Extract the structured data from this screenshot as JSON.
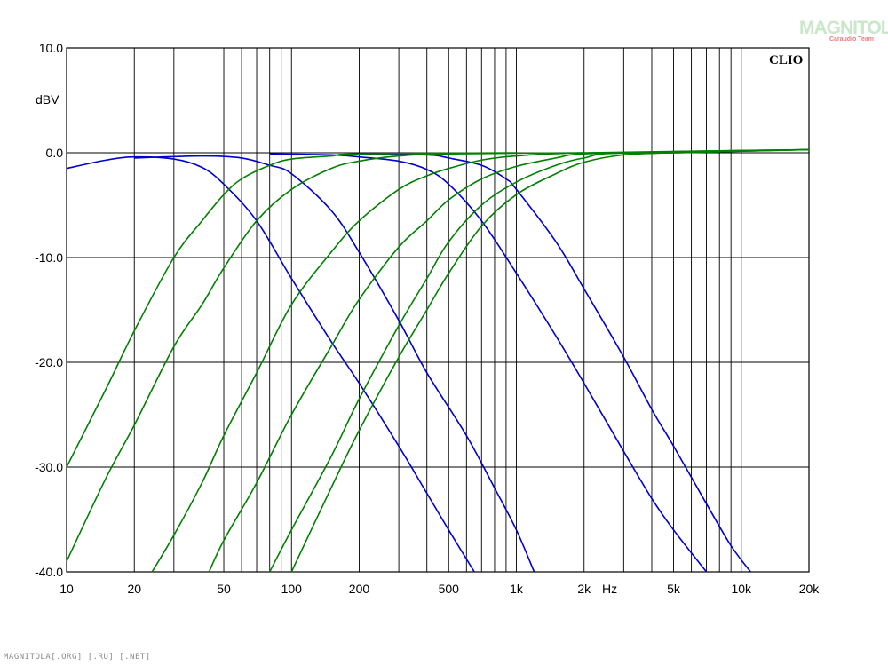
{
  "watermark": {
    "brand": "MAGNITOLA",
    "sub": "Caraudio Team"
  },
  "footer": "MAGNITOLA[.ORG] [.RU] [.NET]",
  "chart_data": {
    "type": "line",
    "logo": "CLIO",
    "ylabel": "dBV",
    "xlabel": "Hz",
    "x_scale": "log",
    "xlim": [
      10,
      20000
    ],
    "ylim": [
      -40,
      10
    ],
    "grid": true,
    "y_ticks": [
      {
        "value": 10,
        "label": "10.0"
      },
      {
        "value": 0,
        "label": "0.0"
      },
      {
        "value": -10,
        "label": "-10.0"
      },
      {
        "value": -20,
        "label": "-20.0"
      },
      {
        "value": -30,
        "label": "-30.0"
      },
      {
        "value": -40,
        "label": "-40.0"
      }
    ],
    "x_ticks": [
      {
        "value": 10,
        "label": "10"
      },
      {
        "value": 20,
        "label": "20"
      },
      {
        "value": 50,
        "label": "50"
      },
      {
        "value": 100,
        "label": "100"
      },
      {
        "value": 200,
        "label": "200"
      },
      {
        "value": 500,
        "label": "500"
      },
      {
        "value": 1000,
        "label": "1k"
      },
      {
        "value": 2000,
        "label": "2k"
      },
      {
        "value": 5000,
        "label": "5k"
      },
      {
        "value": 10000,
        "label": "10k"
      },
      {
        "value": 20000,
        "label": "20k"
      }
    ],
    "series_colors": {
      "lowpass": "#0000cc",
      "highpass": "#008000"
    },
    "series": [
      {
        "kind": "lowpass",
        "color": "#0000cc",
        "points": [
          [
            10,
            -1.5
          ],
          [
            15,
            -0.7
          ],
          [
            20,
            -0.4
          ],
          [
            30,
            -0.6
          ],
          [
            40,
            -1.4
          ],
          [
            50,
            -3.0
          ],
          [
            70,
            -6.5
          ],
          [
            100,
            -12
          ],
          [
            150,
            -18
          ],
          [
            200,
            -22
          ],
          [
            300,
            -28
          ],
          [
            400,
            -32.5
          ],
          [
            500,
            -36
          ],
          [
            650,
            -40
          ]
        ]
      },
      {
        "kind": "lowpass",
        "color": "#0000cc",
        "points": [
          [
            20,
            -0.5
          ],
          [
            40,
            -0.3
          ],
          [
            60,
            -0.5
          ],
          [
            80,
            -1.2
          ],
          [
            100,
            -2.0
          ],
          [
            150,
            -5.5
          ],
          [
            200,
            -9.5
          ],
          [
            300,
            -16
          ],
          [
            400,
            -21
          ],
          [
            600,
            -27
          ],
          [
            800,
            -32
          ],
          [
            1000,
            -36
          ],
          [
            1200,
            -40
          ]
        ]
      },
      {
        "kind": "lowpass",
        "color": "#0000cc",
        "points": [
          [
            80,
            -0.1
          ],
          [
            150,
            -0.2
          ],
          [
            200,
            -0.4
          ],
          [
            300,
            -0.8
          ],
          [
            400,
            -1.6
          ],
          [
            500,
            -3.0
          ],
          [
            700,
            -6.5
          ],
          [
            1000,
            -11.5
          ],
          [
            1500,
            -17.5
          ],
          [
            2000,
            -22
          ],
          [
            3000,
            -28.5
          ],
          [
            4000,
            -33
          ],
          [
            5000,
            -36
          ],
          [
            7000,
            -40
          ]
        ]
      },
      {
        "kind": "lowpass",
        "color": "#0000cc",
        "points": [
          [
            200,
            -0.1
          ],
          [
            400,
            -0.2
          ],
          [
            500,
            -0.5
          ],
          [
            700,
            -1.2
          ],
          [
            900,
            -2.5
          ],
          [
            1000,
            -3.5
          ],
          [
            1500,
            -8.5
          ],
          [
            2000,
            -13
          ],
          [
            3000,
            -19.5
          ],
          [
            4000,
            -24.5
          ],
          [
            5000,
            -28
          ],
          [
            7000,
            -33.5
          ],
          [
            9000,
            -37.5
          ],
          [
            11000,
            -40
          ]
        ]
      },
      {
        "kind": "highpass",
        "color": "#008000",
        "points": [
          [
            10,
            -30
          ],
          [
            15,
            -22.5
          ],
          [
            20,
            -17
          ],
          [
            30,
            -10
          ],
          [
            40,
            -6.5
          ],
          [
            50,
            -4.0
          ],
          [
            60,
            -2.5
          ],
          [
            80,
            -1.2
          ],
          [
            100,
            -0.6
          ],
          [
            150,
            -0.3
          ],
          [
            200,
            -0.1
          ],
          [
            1000,
            0
          ]
        ]
      },
      {
        "kind": "highpass",
        "color": "#008000",
        "points": [
          [
            10,
            -39
          ],
          [
            15,
            -31
          ],
          [
            20,
            -26
          ],
          [
            30,
            -18.5
          ],
          [
            40,
            -14.5
          ],
          [
            50,
            -11
          ],
          [
            70,
            -6.5
          ],
          [
            100,
            -3.5
          ],
          [
            150,
            -1.5
          ],
          [
            200,
            -0.8
          ],
          [
            300,
            -0.3
          ],
          [
            500,
            -0.1
          ],
          [
            2000,
            0
          ]
        ]
      },
      {
        "kind": "highpass",
        "color": "#008000",
        "points": [
          [
            24,
            -40
          ],
          [
            30,
            -36.5
          ],
          [
            40,
            -31.5
          ],
          [
            50,
            -27
          ],
          [
            70,
            -21
          ],
          [
            100,
            -14.5
          ],
          [
            150,
            -9.5
          ],
          [
            200,
            -6.5
          ],
          [
            300,
            -3.5
          ],
          [
            400,
            -2.2
          ],
          [
            500,
            -1.5
          ],
          [
            700,
            -0.7
          ],
          [
            1000,
            -0.3
          ],
          [
            2000,
            0
          ],
          [
            20000,
            0.3
          ]
        ]
      },
      {
        "kind": "highpass",
        "color": "#008000",
        "points": [
          [
            43,
            -40
          ],
          [
            50,
            -37
          ],
          [
            70,
            -31.5
          ],
          [
            100,
            -25
          ],
          [
            150,
            -18.5
          ],
          [
            200,
            -14
          ],
          [
            300,
            -9
          ],
          [
            400,
            -6.5
          ],
          [
            500,
            -4.5
          ],
          [
            700,
            -2.5
          ],
          [
            1000,
            -1.3
          ],
          [
            1500,
            -0.5
          ],
          [
            2000,
            -0.1
          ],
          [
            5000,
            0
          ],
          [
            20000,
            0.3
          ]
        ]
      },
      {
        "kind": "highpass",
        "color": "#008000",
        "points": [
          [
            80,
            -40
          ],
          [
            100,
            -36
          ],
          [
            150,
            -29
          ],
          [
            200,
            -23.5
          ],
          [
            300,
            -16.5
          ],
          [
            400,
            -12
          ],
          [
            500,
            -8.5
          ],
          [
            700,
            -5.0
          ],
          [
            1000,
            -2.8
          ],
          [
            1500,
            -1.2
          ],
          [
            2000,
            -0.5
          ],
          [
            3000,
            0
          ],
          [
            20000,
            0.3
          ]
        ]
      },
      {
        "kind": "highpass",
        "color": "#008000",
        "points": [
          [
            100,
            -40
          ],
          [
            150,
            -32
          ],
          [
            200,
            -26.5
          ],
          [
            300,
            -19.5
          ],
          [
            400,
            -15
          ],
          [
            500,
            -11.5
          ],
          [
            700,
            -7.0
          ],
          [
            1000,
            -4.0
          ],
          [
            1500,
            -2.0
          ],
          [
            2000,
            -0.9
          ],
          [
            3000,
            -0.2
          ],
          [
            5000,
            0
          ],
          [
            20000,
            0.3
          ]
        ]
      }
    ]
  }
}
